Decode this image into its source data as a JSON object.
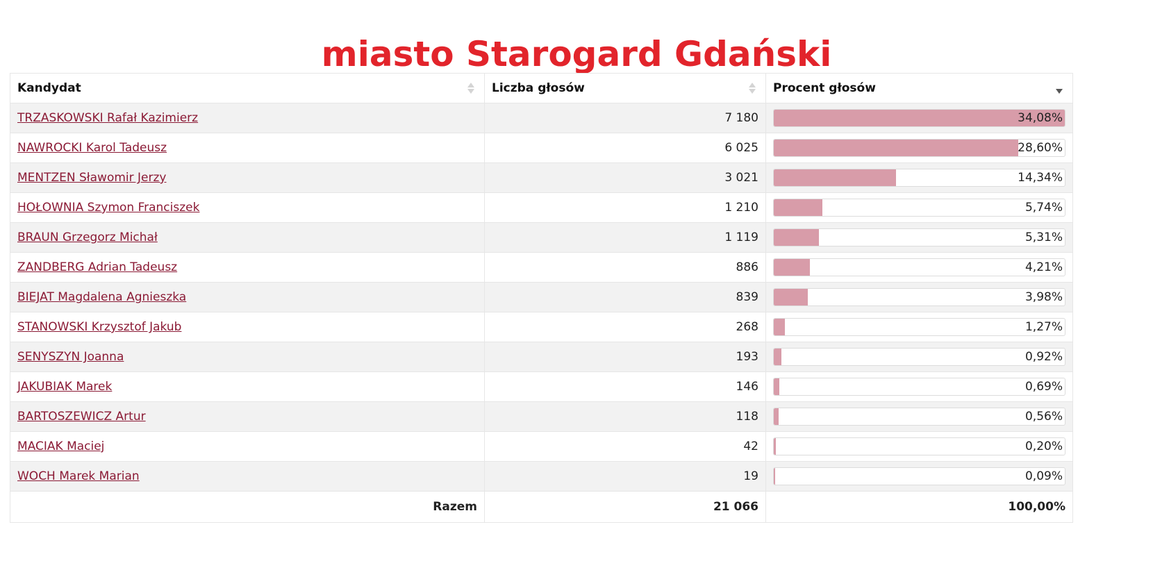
{
  "title": "miasto Starogard Gdański",
  "table": {
    "headers": {
      "candidate": "Kandydat",
      "votes": "Liczba głosów",
      "percent": "Procent głosów"
    },
    "rows": [
      {
        "name": "TRZASKOWSKI Rafał Kazimierz",
        "votes": "7 180",
        "percent": "34,08%",
        "share": 100
      },
      {
        "name": "NAWROCKI Karol Tadeusz",
        "votes": "6 025",
        "percent": "28,60%",
        "share": 83.9
      },
      {
        "name": "MENTZEN Sławomir Jerzy",
        "votes": "3 021",
        "percent": "14,34%",
        "share": 42.1
      },
      {
        "name": "HOŁOWNIA Szymon Franciszek",
        "votes": "1 210",
        "percent": "5,74%",
        "share": 16.8
      },
      {
        "name": "BRAUN Grzegorz Michał",
        "votes": "1 119",
        "percent": "5,31%",
        "share": 15.6
      },
      {
        "name": "ZANDBERG Adrian Tadeusz",
        "votes": "886",
        "percent": "4,21%",
        "share": 12.4
      },
      {
        "name": "BIEJAT Magdalena Agnieszka",
        "votes": "839",
        "percent": "3,98%",
        "share": 11.7
      },
      {
        "name": "STANOWSKI Krzysztof Jakub",
        "votes": "268",
        "percent": "1,27%",
        "share": 3.7
      },
      {
        "name": "SENYSZYN Joanna",
        "votes": "193",
        "percent": "0,92%",
        "share": 2.7
      },
      {
        "name": "JAKUBIAK Marek",
        "votes": "146",
        "percent": "0,69%",
        "share": 2.0
      },
      {
        "name": "BARTOSZEWICZ Artur",
        "votes": "118",
        "percent": "0,56%",
        "share": 1.6
      },
      {
        "name": "MACIAK Maciej",
        "votes": "42",
        "percent": "0,20%",
        "share": 0.6
      },
      {
        "name": "WOCH Marek Marian",
        "votes": "19",
        "percent": "0,09%",
        "share": 0.3
      }
    ],
    "total": {
      "label": "Razem",
      "votes": "21 066",
      "percent": "100,00%"
    }
  },
  "colors": {
    "title": "#e2242b",
    "link": "#8b1a35",
    "bar_fill": "#d89ca9"
  },
  "icons": {
    "sort": "sort-arrows-icon",
    "sort_active": "sort-descending-icon"
  }
}
